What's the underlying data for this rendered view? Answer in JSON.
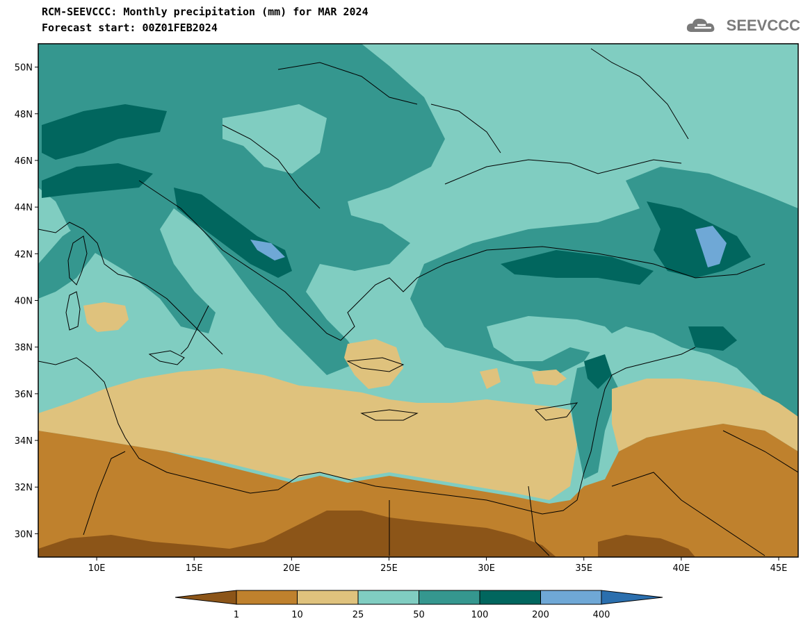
{
  "header": {
    "title_line1": "RCM-SEEVCCC: Monthly precipitation (mm) for MAR 2024",
    "title_line2": "Forecast start: 00Z01FEB2024"
  },
  "logo": {
    "text": "SEEVCCC",
    "icon": "cloud-icon"
  },
  "map": {
    "lat_labels": [
      "50N",
      "48N",
      "46N",
      "44N",
      "42N",
      "40N",
      "38N",
      "36N",
      "34N",
      "32N",
      "30N"
    ],
    "lon_labels": [
      "10E",
      "15E",
      "20E",
      "25E",
      "30E",
      "35E",
      "40E",
      "45E"
    ],
    "lat_values": [
      50,
      48,
      46,
      44,
      42,
      40,
      38,
      36,
      34,
      32,
      30
    ],
    "lon_values": [
      10,
      15,
      20,
      25,
      30,
      35,
      40,
      45
    ],
    "lon_range": [
      7,
      46
    ],
    "lat_range": [
      29,
      51
    ],
    "colors": {
      "lt1": "#8c5518",
      "c1_10": "#bf812d",
      "c10_25": "#dfc27d",
      "c25_50": "#80cdc1",
      "c50_100": "#35978f",
      "c100_200": "#01665e",
      "c200_400": "#6fa8d6",
      "gt400": "#2b6fae"
    }
  },
  "colorbar": {
    "labels": [
      "1",
      "10",
      "25",
      "50",
      "100",
      "200",
      "400"
    ],
    "colors": [
      "#8c5518",
      "#bf812d",
      "#dfc27d",
      "#80cdc1",
      "#35978f",
      "#01665e",
      "#6fa8d6",
      "#2b6fae"
    ]
  }
}
